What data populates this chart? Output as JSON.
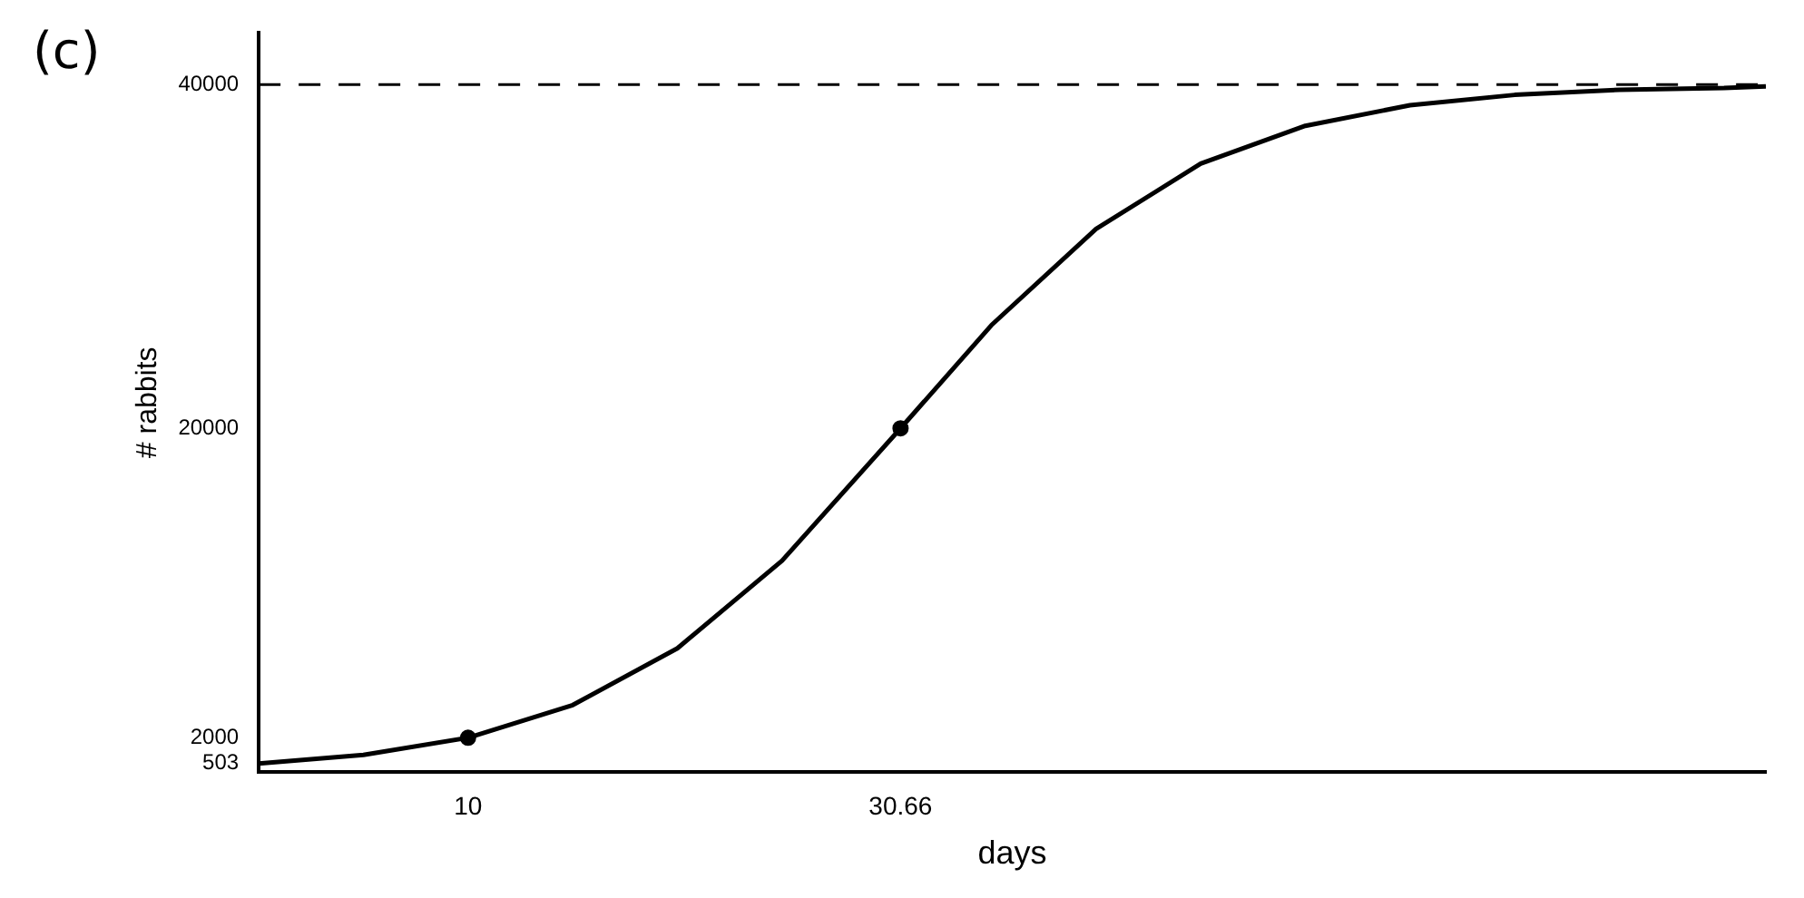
{
  "chart_data": {
    "type": "line",
    "xlabel": "days",
    "ylabel": "# rabbits",
    "annotations": [
      "(c)"
    ],
    "xlim": [
      0,
      72
    ],
    "ylim": [
      0,
      43000
    ],
    "xticks": [
      10,
      30.66
    ],
    "yticks": [
      503,
      2000,
      20000,
      40000
    ],
    "grid": false,
    "legend": false,
    "marker": "none",
    "line_style": "solid",
    "ref_lines": [
      {
        "axis": "y",
        "value": 40000,
        "line_style": "dashed",
        "color": "#000000"
      }
    ],
    "series": [
      {
        "type": "line",
        "color": "#000000",
        "x": [
          0,
          5,
          10,
          15,
          20,
          25,
          30.66,
          35,
          40,
          45,
          50,
          55,
          60,
          65,
          70,
          72
        ],
        "values": [
          503,
          1000,
          2000,
          3900,
          7200,
          12300,
          20000,
          26000,
          31600,
          35400,
          37600,
          38800,
          39400,
          39700,
          39800,
          39900
        ]
      },
      {
        "type": "scatter",
        "color": "#000000",
        "marker": "circle",
        "x": [
          10,
          30.66
        ],
        "values": [
          2000,
          20000
        ]
      }
    ]
  }
}
